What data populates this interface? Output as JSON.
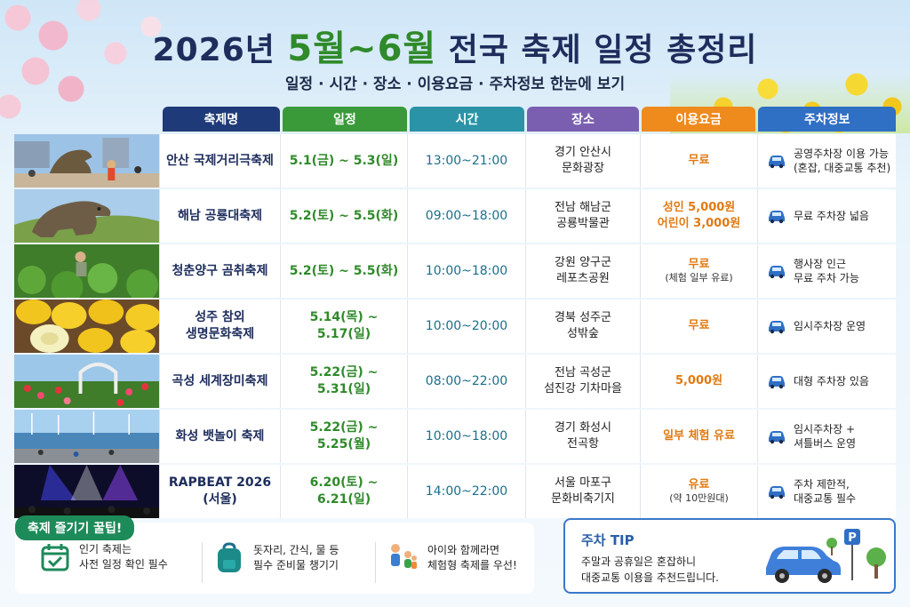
{
  "header": {
    "title_year": "2026년",
    "title_months": "5월~6월",
    "title_rest": "전국 축제 일정 총정리",
    "subtitle": "일정 · 시간 · 장소 · 이용요금 · 주차정보 한눈에 보기"
  },
  "columns": [
    {
      "label": "축제명",
      "color": "#1f3a78"
    },
    {
      "label": "일정",
      "color": "#3a9a3a"
    },
    {
      "label": "시간",
      "color": "#2a93a8"
    },
    {
      "label": "장소",
      "color": "#7a5fb0"
    },
    {
      "label": "이용요금",
      "color": "#ef8a1c"
    },
    {
      "label": "주차정보",
      "color": "#2f6fc4"
    }
  ],
  "festivals": [
    {
      "name": "안산 국제거리극축제",
      "date": "5.1(금) ~ 5.3(일)",
      "time": "13:00~21:00",
      "place": "경기 안산시\n문화광장",
      "fee": "무료",
      "fee_note": "",
      "parking": "공영주차장 이용 가능\n(혼잡, 대중교통 추천)",
      "photo": "street-performance"
    },
    {
      "name": "해남 공룡대축제",
      "date": "5.2(토) ~ 5.5(화)",
      "time": "09:00~18:00",
      "place": "전남 해남군\n공룡박물관",
      "fee": "성인 5,000원\n어린이 3,000원",
      "fee_note": "",
      "parking": "무료 주차장 넓음",
      "photo": "dinosaur"
    },
    {
      "name": "청춘양구 곰취축제",
      "date": "5.2(토) ~ 5.5(화)",
      "time": "10:00~18:00",
      "place": "강원 양구군\n레포츠공원",
      "fee": "무료",
      "fee_note": "(체험 일부 유료)",
      "parking": "행사장 인근\n무료 주차 가능",
      "photo": "greens-field"
    },
    {
      "name": "성주 참외\n생명문화축제",
      "date": "5.14(목) ~ 5.17(일)",
      "time": "10:00~20:00",
      "place": "경북 성주군\n성밖숲",
      "fee": "무료",
      "fee_note": "",
      "parking": "임시주차장 운영",
      "photo": "korean-melon"
    },
    {
      "name": "곡성 세계장미축제",
      "date": "5.22(금) ~ 5.31(일)",
      "time": "08:00~22:00",
      "place": "전남 곡성군\n섬진강 기차마을",
      "fee": "5,000원",
      "fee_note": "",
      "parking": "대형 주차장 있음",
      "photo": "rose-garden"
    },
    {
      "name": "화성 뱃놀이 축제",
      "date": "5.22(금) ~ 5.25(월)",
      "time": "10:00~18:00",
      "place": "경기 화성시\n전곡항",
      "fee": "일부 체험 유료",
      "fee_note": "",
      "parking": "임시주차장 +\n셔틀버스 운영",
      "photo": "marina"
    },
    {
      "name": "RAPBEAT 2026\n(서울)",
      "date": "6.20(토) ~ 6.21(일)",
      "time": "14:00~22:00",
      "place": "서울 마포구\n문화비축기지",
      "fee": "유료",
      "fee_note": "(약 10만원대)",
      "parking": "주차 제한적,\n대중교통 필수",
      "photo": "concert"
    }
  ],
  "tips": {
    "title": "축제 즐기기 꿀팁!",
    "items": [
      {
        "text": "인기 축제는\n사전 일정 확인 필수",
        "icon": "calendar-check-icon"
      },
      {
        "text": "돗자리, 간식, 물 등\n필수 준비물 챙기기",
        "icon": "backpack-icon"
      },
      {
        "text": "아이와 함께라면\n체험형 축제를 우선!",
        "icon": "family-icon"
      }
    ]
  },
  "parking_tip": {
    "title": "주차 TIP",
    "text": "주말과 공휴일은 혼잡하니\n대중교통 이용을 추천드립니다.",
    "sign": "P"
  }
}
